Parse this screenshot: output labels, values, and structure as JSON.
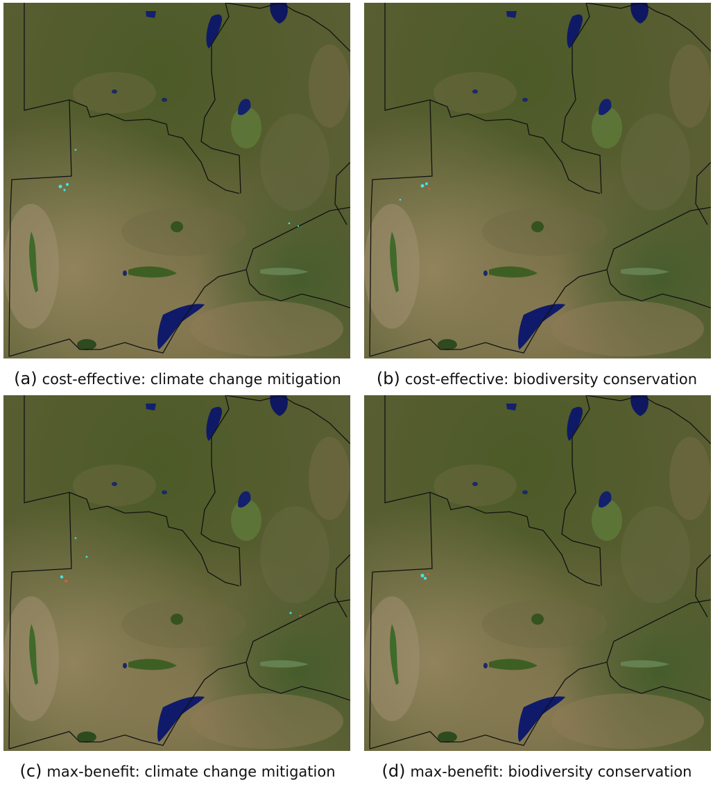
{
  "colors": {
    "land_green": "#4f5a2c",
    "land_dry": "#8a7a55",
    "water": "#101a5c",
    "border": "#111111",
    "cost_effective_marker": "#40e6e6",
    "max_benefit_marker": "#e05a3a"
  },
  "panels": [
    {
      "tag": "(a)",
      "caption": "cost-effective: climate change mitigation",
      "marker_color": "cyan"
    },
    {
      "tag": "(b)",
      "caption": "cost-effective: biodiversity conservation",
      "marker_color": "cyan"
    },
    {
      "tag": "(c)",
      "caption": "max-benefit: climate change mitigation",
      "marker_color": "cyan-red"
    },
    {
      "tag": "(d)",
      "caption": "max-benefit: biodiversity conservation",
      "marker_color": "cyan"
    }
  ]
}
